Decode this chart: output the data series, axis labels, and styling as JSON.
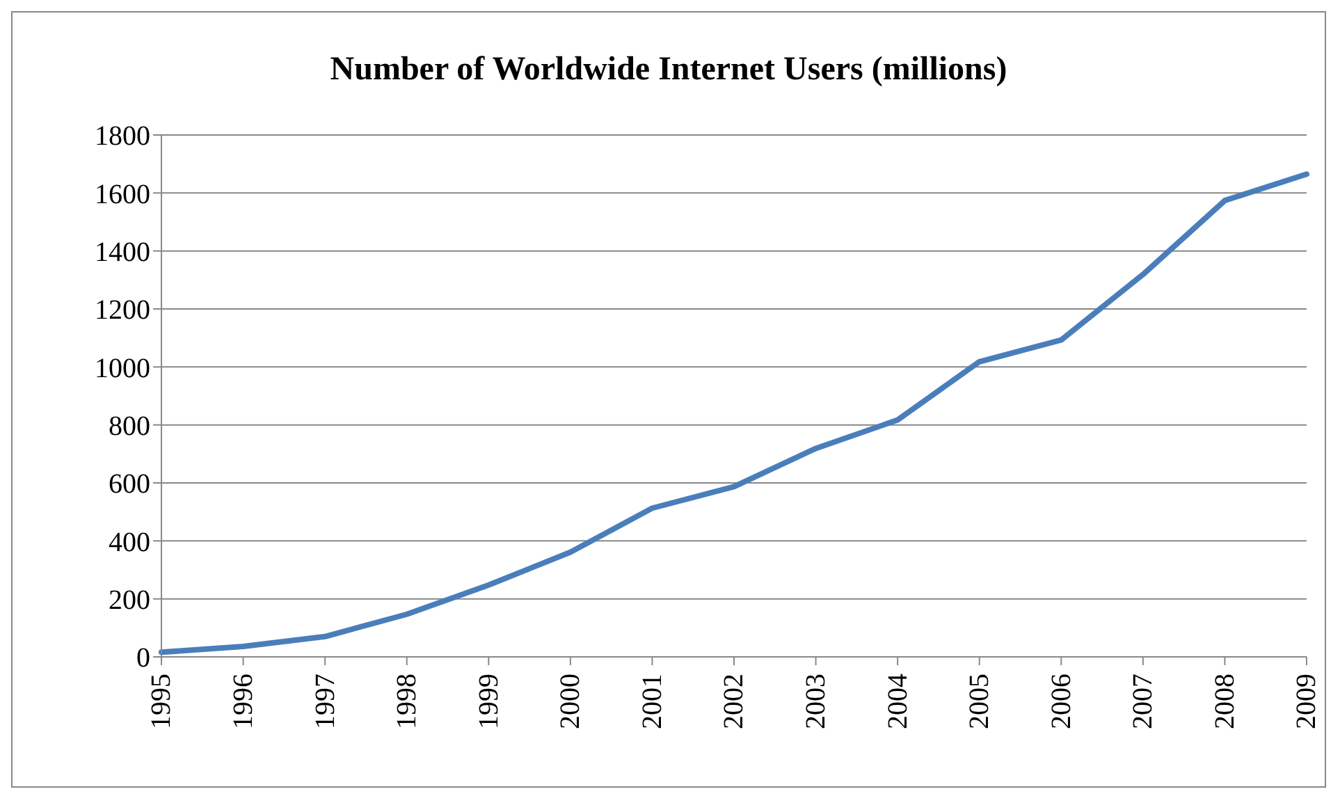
{
  "chart_data": {
    "type": "line",
    "title": "Number of Worldwide Internet Users (millions)",
    "categories": [
      "1995",
      "1996",
      "1997",
      "1998",
      "1999",
      "2000",
      "2001",
      "2002",
      "2003",
      "2004",
      "2005",
      "2006",
      "2007",
      "2008",
      "2009"
    ],
    "series": [
      {
        "color": "#4a7ebb",
        "values": [
          16,
          36,
          70,
          147,
          248,
          361,
          513,
          587,
          719,
          817,
          1018,
          1093,
          1319,
          1574,
          1665
        ]
      }
    ],
    "ylim": [
      0,
      1800
    ],
    "yticks": [
      0,
      200,
      400,
      600,
      800,
      1000,
      1200,
      1400,
      1600,
      1800
    ],
    "grid": "y",
    "legend": false,
    "marker": "none",
    "line_style": "solid"
  }
}
